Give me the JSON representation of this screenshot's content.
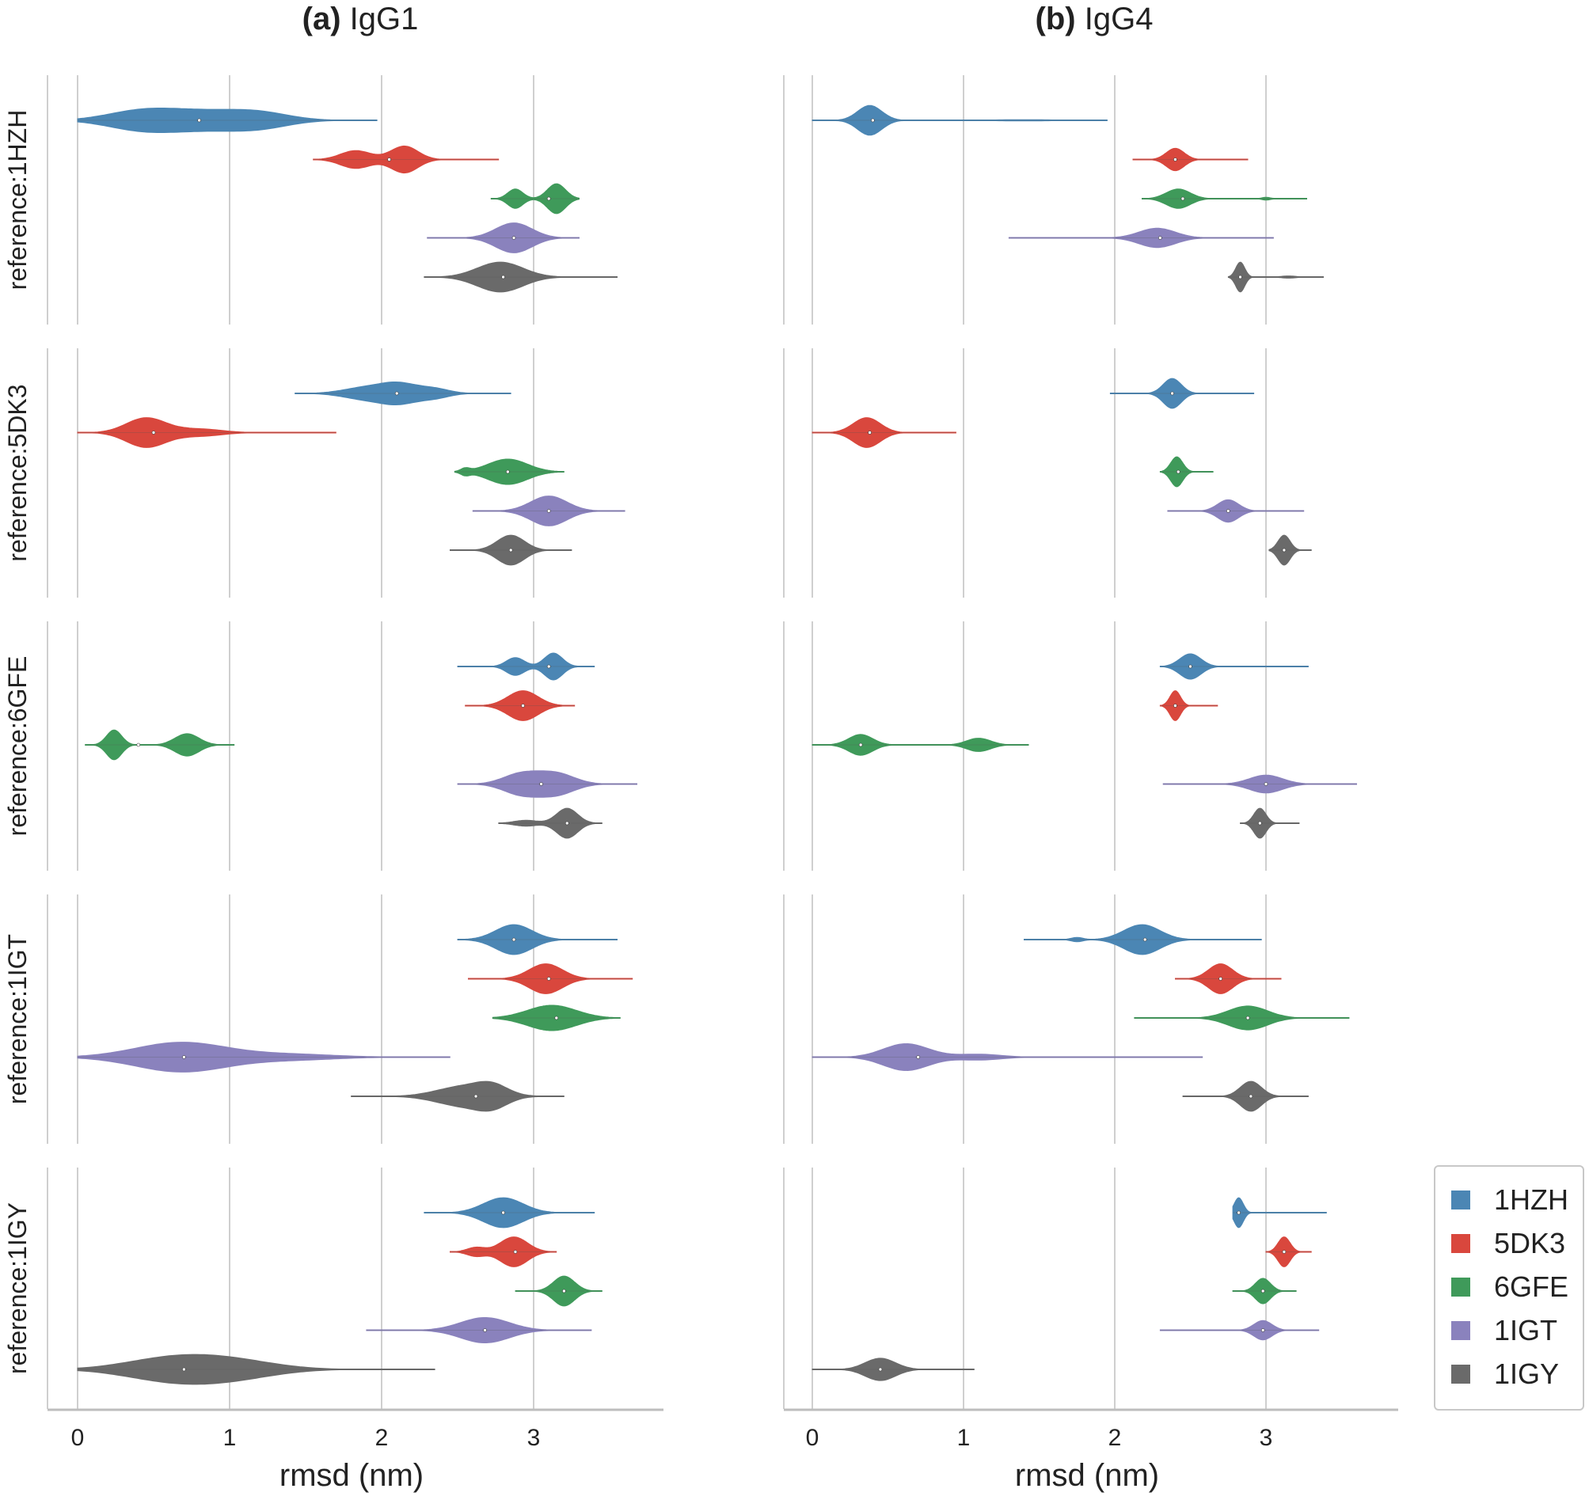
{
  "panels": [
    {
      "letter": "(a)",
      "name": "IgG1"
    },
    {
      "letter": "(b)",
      "name": "IgG4"
    }
  ],
  "colors": {
    "1HZH": "#4b86b4",
    "5DK3": "#d9473d",
    "6GFE": "#3f9a5a",
    "1IGT": "#8a82bd",
    "1IGY": "#6a6a6a"
  },
  "legend": [
    "1HZH",
    "5DK3",
    "6GFE",
    "1IGT",
    "1IGY"
  ],
  "chart_data": {
    "type": "violin",
    "orientation": "horizontal",
    "xlabel": "rmsd (nm)",
    "xlim": [
      -0.2,
      3.7
    ],
    "xticks": [
      0,
      1,
      2,
      3
    ],
    "grid": "vertical",
    "legend_position": "bottom-right",
    "rows": [
      "reference:1HZH",
      "reference:5DK3",
      "reference:6GFE",
      "reference:1IGT",
      "reference:1IGY"
    ],
    "row_labels": [
      "reference:1HZH",
      "reference:5DK3",
      "reference:6GFE",
      "reference:1IGT",
      "reference:1IGY"
    ],
    "series_names": [
      "1HZH",
      "5DK3",
      "6GFE",
      "1IGT",
      "1IGY"
    ],
    "panels": [
      {
        "name": "IgG1",
        "rows": [
          {
            "1HZH": {
              "range": [
                0.0,
                1.97
              ],
              "median": 0.8,
              "peaks": [
                [
                  0.4,
                  0.22,
                  0.5
                ],
                [
                  0.8,
                  0.3,
                  0.6
                ],
                [
                  1.2,
                  0.2,
                  0.4
                ]
              ]
            },
            "5DK3": {
              "range": [
                1.55,
                2.77
              ],
              "median": 2.05,
              "peaks": [
                [
                  1.83,
                  0.1,
                  0.6
                ],
                [
                  2.15,
                  0.09,
                  0.9
                ]
              ]
            },
            "6GFE": {
              "range": [
                2.72,
                3.3
              ],
              "median": 3.1,
              "peaks": [
                [
                  2.88,
                  0.05,
                  0.65
                ],
                [
                  3.15,
                  0.06,
                  1.0
                ]
              ]
            },
            "1IGT": {
              "range": [
                2.3,
                3.3
              ],
              "median": 2.87,
              "peaks": [
                [
                  2.87,
                  0.12,
                  1.0
                ]
              ]
            },
            "1IGY": {
              "range": [
                2.28,
                3.55
              ],
              "median": 2.8,
              "peaks": [
                [
                  2.78,
                  0.15,
                  1.0
                ]
              ]
            }
          },
          {
            "1HZH": {
              "range": [
                1.43,
                2.85
              ],
              "median": 2.1,
              "peaks": [
                [
                  1.9,
                  0.15,
                  0.4
                ],
                [
                  2.12,
                  0.12,
                  0.6
                ],
                [
                  2.35,
                  0.1,
                  0.3
                ]
              ]
            },
            "5DK3": {
              "range": [
                0.0,
                1.7
              ],
              "median": 0.5,
              "peaks": [
                [
                  0.45,
                  0.13,
                  1.0
                ],
                [
                  0.8,
                  0.15,
                  0.25
                ]
              ]
            },
            "6GFE": {
              "range": [
                2.48,
                3.2
              ],
              "median": 2.83,
              "peaks": [
                [
                  2.83,
                  0.13,
                  0.85
                ],
                [
                  2.55,
                  0.03,
                  0.2
                ]
              ]
            },
            "1IGT": {
              "range": [
                2.6,
                3.6
              ],
              "median": 3.1,
              "peaks": [
                [
                  3.1,
                  0.12,
                  1.0
                ]
              ]
            },
            "1IGY": {
              "range": [
                2.45,
                3.25
              ],
              "median": 2.85,
              "peaks": [
                [
                  2.85,
                  0.09,
                  1.0
                ]
              ]
            }
          },
          {
            "1HZH": {
              "range": [
                2.5,
                3.4
              ],
              "median": 3.1,
              "peaks": [
                [
                  2.88,
                  0.06,
                  0.6
                ],
                [
                  3.13,
                  0.06,
                  0.9
                ]
              ]
            },
            "5DK3": {
              "range": [
                2.55,
                3.27
              ],
              "median": 2.93,
              "peaks": [
                [
                  2.93,
                  0.1,
                  1.0
                ]
              ]
            },
            "6GFE": {
              "range": [
                0.05,
                1.03
              ],
              "median": 0.4,
              "peaks": [
                [
                  0.24,
                  0.05,
                  1.0
                ],
                [
                  0.72,
                  0.08,
                  0.75
                ]
              ]
            },
            "1IGT": {
              "range": [
                2.5,
                3.68
              ],
              "median": 3.05,
              "peaks": [
                [
                  2.92,
                  0.12,
                  0.7
                ],
                [
                  3.15,
                  0.12,
                  0.7
                ]
              ]
            },
            "1IGY": {
              "range": [
                2.77,
                3.45
              ],
              "median": 3.22,
              "peaks": [
                [
                  3.22,
                  0.07,
                  1.0
                ],
                [
                  2.95,
                  0.08,
                  0.2
                ]
              ]
            }
          },
          {
            "1HZH": {
              "range": [
                2.5,
                3.55
              ],
              "median": 2.87,
              "peaks": [
                [
                  2.87,
                  0.12,
                  1.0
                ]
              ]
            },
            "5DK3": {
              "range": [
                2.57,
                3.65
              ],
              "median": 3.1,
              "peaks": [
                [
                  3.08,
                  0.11,
                  1.0
                ]
              ]
            },
            "6GFE": {
              "range": [
                2.73,
                3.57
              ],
              "median": 3.15,
              "peaks": [
                [
                  3.12,
                  0.16,
                  0.85
                ]
              ]
            },
            "1IGT": {
              "range": [
                0.0,
                2.45
              ],
              "median": 0.7,
              "peaks": [
                [
                  0.68,
                  0.3,
                  1.0
                ],
                [
                  1.4,
                  0.3,
                  0.2
                ]
              ]
            },
            "1IGY": {
              "range": [
                1.8,
                3.2
              ],
              "median": 2.62,
              "peaks": [
                [
                  2.55,
                  0.18,
                  0.9
                ],
                [
                  2.73,
                  0.1,
                  0.7
                ]
              ]
            }
          },
          {
            "1HZH": {
              "range": [
                2.28,
                3.4
              ],
              "median": 2.8,
              "peaks": [
                [
                  2.8,
                  0.13,
                  1.0
                ]
              ]
            },
            "5DK3": {
              "range": [
                2.45,
                3.15
              ],
              "median": 2.88,
              "peaks": [
                [
                  2.87,
                  0.09,
                  1.0
                ],
                [
                  2.62,
                  0.06,
                  0.3
                ]
              ]
            },
            "6GFE": {
              "range": [
                2.88,
                3.45
              ],
              "median": 3.2,
              "peaks": [
                [
                  3.2,
                  0.07,
                  1.0
                ]
              ]
            },
            "1IGT": {
              "range": [
                1.9,
                3.38
              ],
              "median": 2.68,
              "peaks": [
                [
                  2.68,
                  0.16,
                  0.85
                ]
              ]
            },
            "1IGY": {
              "range": [
                0.0,
                2.35
              ],
              "median": 0.7,
              "peaks": [
                [
                  0.6,
                  0.3,
                  0.7
                ],
                [
                  1.0,
                  0.3,
                  0.6
                ]
              ]
            }
          }
        ]
      },
      {
        "name": "IgG4",
        "rows": [
          {
            "1HZH": {
              "range": [
                0.0,
                1.95
              ],
              "median": 0.4,
              "peaks": [
                [
                  0.38,
                  0.08,
                  1.0
                ],
                [
                  1.4,
                  0.2,
                  0.05
                ]
              ]
            },
            "5DK3": {
              "range": [
                2.12,
                2.88
              ],
              "median": 2.4,
              "peaks": [
                [
                  2.4,
                  0.06,
                  0.75
                ]
              ]
            },
            "6GFE": {
              "range": [
                2.18,
                3.27
              ],
              "median": 2.45,
              "peaks": [
                [
                  2.42,
                  0.08,
                  0.65
                ],
                [
                  3.0,
                  0.03,
                  0.1
                ]
              ]
            },
            "1IGT": {
              "range": [
                1.3,
                3.05
              ],
              "median": 2.3,
              "peaks": [
                [
                  2.28,
                  0.12,
                  0.65
                ]
              ]
            },
            "1IGY": {
              "range": [
                2.75,
                3.38
              ],
              "median": 2.83,
              "peaks": [
                [
                  2.83,
                  0.03,
                  1.0
                ],
                [
                  3.15,
                  0.05,
                  0.08
                ]
              ]
            }
          },
          {
            "1HZH": {
              "range": [
                1.97,
                2.92
              ],
              "median": 2.38,
              "peaks": [
                [
                  2.38,
                  0.06,
                  1.0
                ]
              ]
            },
            "5DK3": {
              "range": [
                0.0,
                0.95
              ],
              "median": 0.38,
              "peaks": [
                [
                  0.36,
                  0.09,
                  1.0
                ]
              ]
            },
            "6GFE": {
              "range": [
                2.3,
                2.65
              ],
              "median": 2.42,
              "peaks": [
                [
                  2.41,
                  0.04,
                  1.0
                ]
              ]
            },
            "1IGT": {
              "range": [
                2.35,
                3.25
              ],
              "median": 2.75,
              "peaks": [
                [
                  2.75,
                  0.07,
                  0.75
                ]
              ]
            },
            "1IGY": {
              "range": [
                3.02,
                3.3
              ],
              "median": 3.12,
              "peaks": [
                [
                  3.12,
                  0.04,
                  1.0
                ]
              ]
            }
          },
          {
            "1HZH": {
              "range": [
                2.3,
                3.28
              ],
              "median": 2.5,
              "peaks": [
                [
                  2.5,
                  0.07,
                  0.85
                ]
              ]
            },
            "5DK3": {
              "range": [
                2.3,
                2.68
              ],
              "median": 2.4,
              "peaks": [
                [
                  2.4,
                  0.035,
                  1.0
                ]
              ]
            },
            "6GFE": {
              "range": [
                0.0,
                1.43
              ],
              "median": 0.32,
              "peaks": [
                [
                  0.32,
                  0.08,
                  0.7
                ],
                [
                  1.1,
                  0.08,
                  0.45
                ]
              ]
            },
            "1IGT": {
              "range": [
                2.32,
                3.6
              ],
              "median": 3.0,
              "peaks": [
                [
                  3.0,
                  0.11,
                  0.6
                ]
              ]
            },
            "1IGY": {
              "range": [
                2.83,
                3.22
              ],
              "median": 2.96,
              "peaks": [
                [
                  2.96,
                  0.04,
                  1.0
                ]
              ]
            }
          },
          {
            "1HZH": {
              "range": [
                1.4,
                2.97
              ],
              "median": 2.2,
              "peaks": [
                [
                  2.18,
                  0.12,
                  1.0
                ],
                [
                  1.75,
                  0.04,
                  0.15
                ]
              ]
            },
            "5DK3": {
              "range": [
                2.4,
                3.1
              ],
              "median": 2.7,
              "peaks": [
                [
                  2.7,
                  0.08,
                  1.0
                ]
              ]
            },
            "6GFE": {
              "range": [
                2.13,
                3.55
              ],
              "median": 2.88,
              "peaks": [
                [
                  2.88,
                  0.13,
                  0.8
                ]
              ]
            },
            "1IGT": {
              "range": [
                0.0,
                2.58
              ],
              "median": 0.7,
              "peaks": [
                [
                  0.62,
                  0.15,
                  0.9
                ],
                [
                  1.1,
                  0.15,
                  0.2
                ]
              ]
            },
            "1IGY": {
              "range": [
                2.45,
                3.28
              ],
              "median": 2.9,
              "peaks": [
                [
                  2.9,
                  0.07,
                  1.0
                ]
              ]
            }
          },
          {
            "1HZH": {
              "range": [
                2.78,
                3.4
              ],
              "median": 2.82,
              "peaks": [
                [
                  2.82,
                  0.03,
                  1.0
                ]
              ]
            },
            "5DK3": {
              "range": [
                3.0,
                3.3
              ],
              "median": 3.12,
              "peaks": [
                [
                  3.12,
                  0.04,
                  1.0
                ]
              ]
            },
            "6GFE": {
              "range": [
                2.78,
                3.2
              ],
              "median": 2.98,
              "peaks": [
                [
                  2.98,
                  0.05,
                  0.85
                ]
              ]
            },
            "1IGT": {
              "range": [
                2.3,
                3.35
              ],
              "median": 2.98,
              "peaks": [
                [
                  2.98,
                  0.06,
                  0.65
                ]
              ]
            },
            "1IGY": {
              "range": [
                0.0,
                1.07
              ],
              "median": 0.45,
              "peaks": [
                [
                  0.45,
                  0.1,
                  0.75
                ]
              ]
            }
          }
        ]
      }
    ]
  }
}
